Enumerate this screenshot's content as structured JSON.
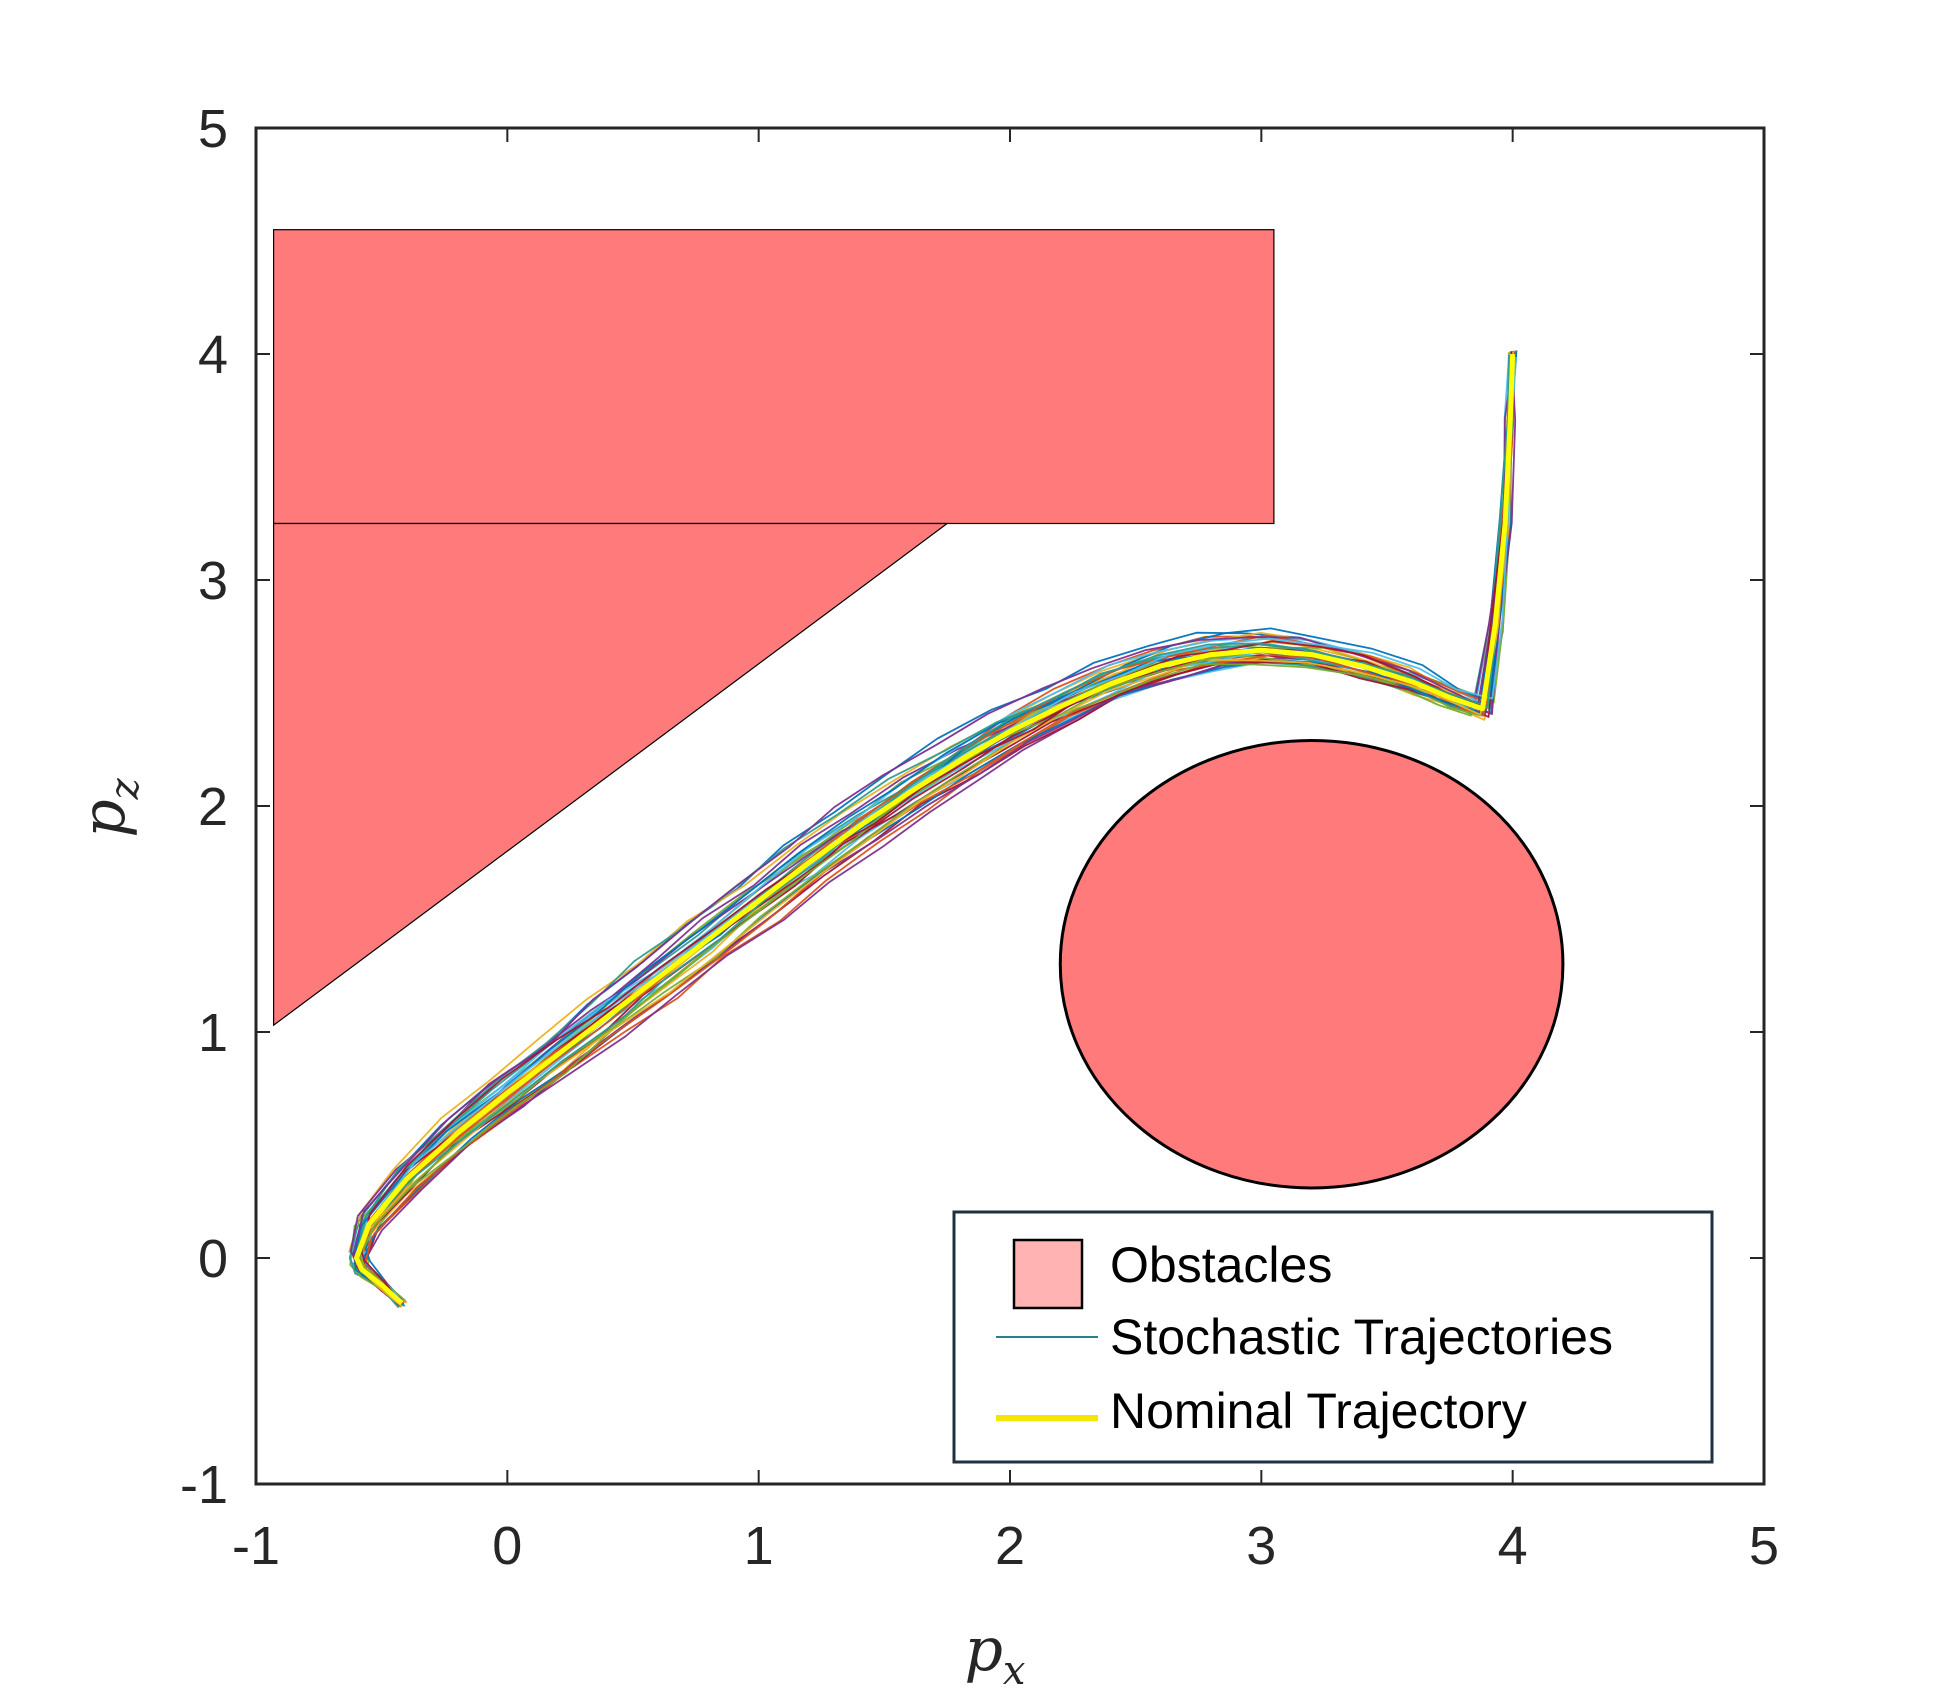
{
  "chart_data": {
    "type": "line",
    "xlabel": "p",
    "xlabel_sub": "x",
    "ylabel": "p",
    "ylabel_sub": "z",
    "xlim": [
      -1,
      5
    ],
    "ylim": [
      -1,
      5
    ],
    "xticks": [
      "-1",
      "0",
      "1",
      "2",
      "3",
      "4",
      "5"
    ],
    "yticks": [
      "-1",
      "0",
      "1",
      "2",
      "3",
      "4",
      "5"
    ],
    "grid": false,
    "legend_position": "bottom-right",
    "legend": {
      "obstacles": "Obstacles",
      "stochastic": "Stochastic Trajectories",
      "nominal": "Nominal Trajectory"
    },
    "obstacles": [
      {
        "shape": "rectangle",
        "x_range": [
          -0.93,
          3.05
        ],
        "y_range": [
          3.25,
          4.55
        ]
      },
      {
        "shape": "triangle",
        "vertices": [
          [
            -0.93,
            3.25
          ],
          [
            1.75,
            3.25
          ],
          [
            -0.93,
            1.03
          ]
        ]
      },
      {
        "shape": "ellipse",
        "center": [
          3.2,
          1.3
        ],
        "radius_x": 1.0,
        "radius_y": 0.99
      }
    ],
    "nominal_trajectory": {
      "name": "Nominal Trajectory",
      "color": "#ffff00",
      "x": [
        -0.42,
        -0.5,
        -0.58,
        -0.6,
        -0.55,
        -0.4,
        -0.2,
        0.0,
        0.2,
        0.4,
        0.6,
        0.8,
        1.0,
        1.2,
        1.4,
        1.6,
        1.8,
        2.0,
        2.2,
        2.4,
        2.6,
        2.8,
        3.0,
        3.2,
        3.4,
        3.6,
        3.75,
        3.88,
        3.93,
        3.97,
        3.99,
        4.0
      ],
      "y": [
        -0.2,
        -0.12,
        -0.05,
        0.0,
        0.15,
        0.35,
        0.55,
        0.73,
        0.9,
        1.07,
        1.24,
        1.41,
        1.58,
        1.75,
        1.91,
        2.06,
        2.2,
        2.33,
        2.44,
        2.54,
        2.62,
        2.67,
        2.69,
        2.67,
        2.62,
        2.55,
        2.48,
        2.43,
        2.8,
        3.25,
        3.7,
        4.0
      ]
    },
    "stochastic_trajectories": {
      "name": "Stochastic Trajectories",
      "count": 40,
      "colors": [
        "#0072BD",
        "#D95319",
        "#EDB120",
        "#7E2F8E",
        "#77AC30",
        "#4DBEEE",
        "#A2142F",
        "#2a9d8f"
      ]
    }
  }
}
